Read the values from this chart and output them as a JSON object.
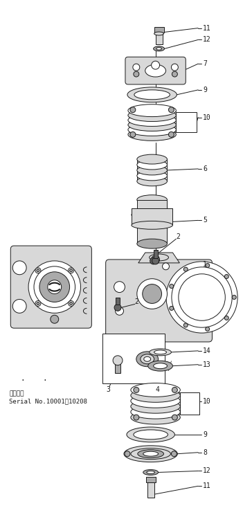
{
  "bg_color": "#ffffff",
  "line_color": "#1a1a1a",
  "gray_light": "#d8d8d8",
  "gray_mid": "#aaaaaa",
  "gray_dark": "#666666",
  "figsize": [
    3.51,
    7.34
  ],
  "dpi": 100,
  "serial_line1": "適用番號",
  "serial_line2": "Serial No.10001～10208"
}
